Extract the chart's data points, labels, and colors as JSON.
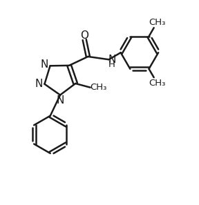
{
  "background_color": "#ffffff",
  "line_color": "#1a1a1a",
  "bond_lw": 1.8,
  "font_size": 11,
  "font_size_small": 9.5,
  "figsize": [
    2.88,
    2.97
  ],
  "dpi": 100,
  "xlim": [
    0,
    10
  ],
  "ylim": [
    0,
    10.3
  ]
}
